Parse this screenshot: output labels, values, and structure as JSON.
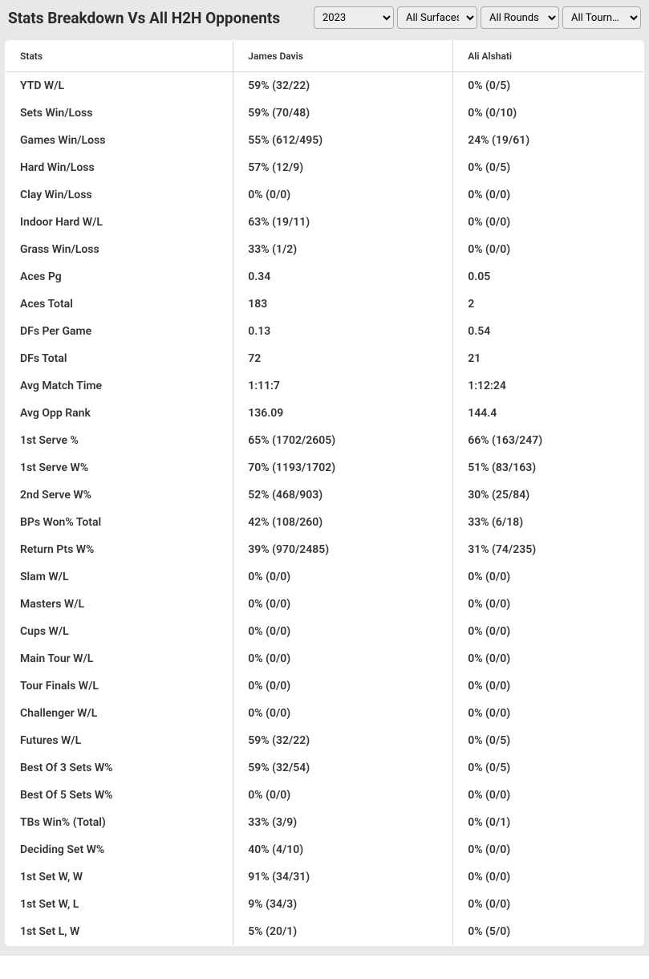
{
  "header": {
    "title": "Stats Breakdown Vs All H2H Opponents",
    "filters": {
      "year": "2023",
      "surface": "All Surfaces",
      "rounds": "All Rounds",
      "tourn": "All Tourn…"
    }
  },
  "table": {
    "columns": {
      "stats": "Stats",
      "player1": "James Davis",
      "player2": "Ali Alshati"
    },
    "rows": [
      {
        "stat": "YTD W/L",
        "p1": "59% (32/22)",
        "p2": "0% (0/5)"
      },
      {
        "stat": "Sets Win/Loss",
        "p1": "59% (70/48)",
        "p2": "0% (0/10)"
      },
      {
        "stat": "Games Win/Loss",
        "p1": "55% (612/495)",
        "p2": "24% (19/61)"
      },
      {
        "stat": "Hard Win/Loss",
        "p1": "57% (12/9)",
        "p2": "0% (0/5)"
      },
      {
        "stat": "Clay Win/Loss",
        "p1": "0% (0/0)",
        "p2": "0% (0/0)"
      },
      {
        "stat": "Indoor Hard W/L",
        "p1": "63% (19/11)",
        "p2": "0% (0/0)"
      },
      {
        "stat": "Grass Win/Loss",
        "p1": "33% (1/2)",
        "p2": "0% (0/0)"
      },
      {
        "stat": "Aces Pg",
        "p1": "0.34",
        "p2": "0.05"
      },
      {
        "stat": "Aces Total",
        "p1": "183",
        "p2": "2"
      },
      {
        "stat": "DFs Per Game",
        "p1": "0.13",
        "p2": "0.54"
      },
      {
        "stat": "DFs Total",
        "p1": "72",
        "p2": "21"
      },
      {
        "stat": "Avg Match Time",
        "p1": "1:11:7",
        "p2": "1:12:24"
      },
      {
        "stat": "Avg Opp Rank",
        "p1": "136.09",
        "p2": "144.4"
      },
      {
        "stat": "1st Serve %",
        "p1": "65% (1702/2605)",
        "p2": "66% (163/247)"
      },
      {
        "stat": "1st Serve W%",
        "p1": "70% (1193/1702)",
        "p2": "51% (83/163)"
      },
      {
        "stat": "2nd Serve W%",
        "p1": "52% (468/903)",
        "p2": "30% (25/84)"
      },
      {
        "stat": "BPs Won% Total",
        "p1": "42% (108/260)",
        "p2": "33% (6/18)"
      },
      {
        "stat": "Return Pts W%",
        "p1": "39% (970/2485)",
        "p2": "31% (74/235)"
      },
      {
        "stat": "Slam W/L",
        "p1": "0% (0/0)",
        "p2": "0% (0/0)"
      },
      {
        "stat": "Masters W/L",
        "p1": "0% (0/0)",
        "p2": "0% (0/0)"
      },
      {
        "stat": "Cups W/L",
        "p1": "0% (0/0)",
        "p2": "0% (0/0)"
      },
      {
        "stat": "Main Tour W/L",
        "p1": "0% (0/0)",
        "p2": "0% (0/0)"
      },
      {
        "stat": "Tour Finals W/L",
        "p1": "0% (0/0)",
        "p2": "0% (0/0)"
      },
      {
        "stat": "Challenger W/L",
        "p1": "0% (0/0)",
        "p2": "0% (0/0)"
      },
      {
        "stat": "Futures W/L",
        "p1": "59% (32/22)",
        "p2": "0% (0/5)"
      },
      {
        "stat": "Best Of 3 Sets W%",
        "p1": "59% (32/54)",
        "p2": "0% (0/5)"
      },
      {
        "stat": "Best Of 5 Sets W%",
        "p1": "0% (0/0)",
        "p2": "0% (0/0)"
      },
      {
        "stat": "TBs Win% (Total)",
        "p1": "33% (3/9)",
        "p2": "0% (0/1)"
      },
      {
        "stat": "Deciding Set W%",
        "p1": "40% (4/10)",
        "p2": "0% (0/0)"
      },
      {
        "stat": "1st Set W, W",
        "p1": "91% (34/31)",
        "p2": "0% (0/0)"
      },
      {
        "stat": "1st Set W, L",
        "p1": "9% (34/3)",
        "p2": "0% (0/0)"
      },
      {
        "stat": "1st Set L, W",
        "p1": "5% (20/1)",
        "p2": "0% (5/0)"
      }
    ]
  },
  "colors": {
    "header_bg": "#e8e8e8",
    "row_text": "#333333",
    "border": "#d5d5d5",
    "white": "#ffffff"
  }
}
